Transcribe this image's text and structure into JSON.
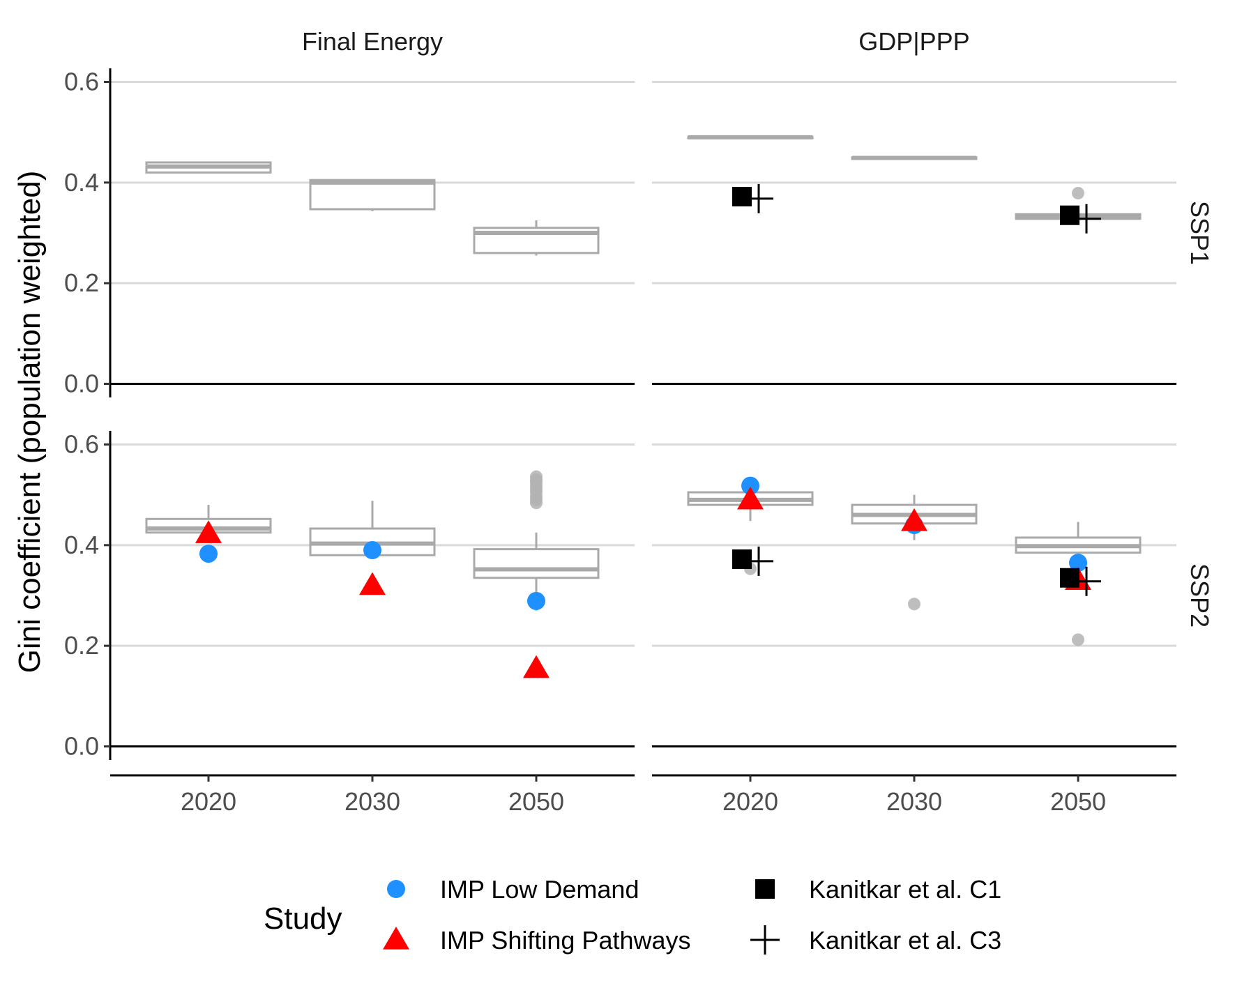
{
  "chart_data": {
    "type": "box",
    "ylabel": "Gini coefficient (population weighted)",
    "xlabel": "",
    "ylim": [
      0.0,
      0.6
    ],
    "yticks": [
      0.0,
      0.2,
      0.4,
      0.6
    ],
    "ytick_labels": [
      "0.0",
      "0.2",
      "0.4",
      "0.6"
    ],
    "categories": [
      "2020",
      "2030",
      "2050"
    ],
    "columns": [
      "Final Energy",
      "GDP|PPP"
    ],
    "rows": [
      "SSP1",
      "SSP2"
    ],
    "grid": "horizontal major",
    "legend": {
      "title": "Study",
      "position": "bottom",
      "entries": [
        {
          "label": "IMP Low Demand",
          "shape": "circle",
          "color": "#1e90ff"
        },
        {
          "label": "IMP Shifting Pathways",
          "shape": "triangle",
          "color": "#ff0000"
        },
        {
          "label": "Kanitkar et al. C1",
          "shape": "square",
          "color": "#000000"
        },
        {
          "label": "Kanitkar et al. C3",
          "shape": "cross",
          "color": "#000000"
        }
      ]
    },
    "colors": {
      "box": "#a9a9a9",
      "grid": "#d9d9d9",
      "outlier": "#b3b3b3"
    },
    "panels": [
      {
        "row": "SSP1",
        "column": "Final Energy",
        "boxes": [
          {
            "x": "2020",
            "lower_whisker": 0.42,
            "q1": 0.42,
            "median": 0.432,
            "q3": 0.44,
            "upper_whisker": 0.44,
            "outliers": []
          },
          {
            "x": "2030",
            "lower_whisker": 0.343,
            "q1": 0.347,
            "median": 0.4,
            "q3": 0.405,
            "upper_whisker": 0.405,
            "outliers": []
          },
          {
            "x": "2050",
            "lower_whisker": 0.255,
            "q1": 0.26,
            "median": 0.3,
            "q3": 0.31,
            "upper_whisker": 0.325,
            "outliers": []
          }
        ],
        "points": []
      },
      {
        "row": "SSP1",
        "column": "GDP|PPP",
        "boxes": [
          {
            "x": "2020",
            "lower_whisker": 0.488,
            "q1": 0.488,
            "median": 0.49,
            "q3": 0.491,
            "upper_whisker": 0.491,
            "outliers": []
          },
          {
            "x": "2030",
            "lower_whisker": 0.447,
            "q1": 0.447,
            "median": 0.449,
            "q3": 0.45,
            "upper_whisker": 0.453,
            "outliers": []
          },
          {
            "x": "2050",
            "lower_whisker": 0.327,
            "q1": 0.328,
            "median": 0.333,
            "q3": 0.337,
            "upper_whisker": 0.337,
            "outliers": [
              0.379
            ]
          }
        ],
        "points": [
          {
            "study": "Kanitkar et al. C1",
            "x": "2020",
            "y": 0.372
          },
          {
            "study": "Kanitkar et al. C3",
            "x": "2020",
            "y": 0.368
          },
          {
            "study": "Kanitkar et al. C1",
            "x": "2050",
            "y": 0.335
          },
          {
            "study": "Kanitkar et al. C3",
            "x": "2050",
            "y": 0.328
          }
        ]
      },
      {
        "row": "SSP2",
        "column": "Final Energy",
        "boxes": [
          {
            "x": "2020",
            "lower_whisker": 0.42,
            "q1": 0.425,
            "median": 0.433,
            "q3": 0.452,
            "upper_whisker": 0.48,
            "outliers": []
          },
          {
            "x": "2030",
            "lower_whisker": 0.38,
            "q1": 0.38,
            "median": 0.403,
            "q3": 0.433,
            "upper_whisker": 0.488,
            "outliers": []
          },
          {
            "x": "2050",
            "lower_whisker": 0.27,
            "q1": 0.335,
            "median": 0.352,
            "q3": 0.392,
            "upper_whisker": 0.425,
            "outliers": [
              0.484,
              0.49,
              0.497,
              0.505,
              0.512,
              0.518,
              0.525,
              0.53,
              0.536
            ]
          }
        ],
        "points": [
          {
            "study": "IMP Low Demand",
            "x": "2020",
            "y": 0.383
          },
          {
            "study": "IMP Shifting Pathways",
            "x": "2020",
            "y": 0.423
          },
          {
            "study": "IMP Low Demand",
            "x": "2030",
            "y": 0.39
          },
          {
            "study": "IMP Shifting Pathways",
            "x": "2030",
            "y": 0.32
          },
          {
            "study": "IMP Low Demand",
            "x": "2050",
            "y": 0.289
          },
          {
            "study": "IMP Shifting Pathways",
            "x": "2050",
            "y": 0.155
          }
        ]
      },
      {
        "row": "SSP2",
        "column": "GDP|PPP",
        "boxes": [
          {
            "x": "2020",
            "lower_whisker": 0.448,
            "q1": 0.48,
            "median": 0.49,
            "q3": 0.505,
            "upper_whisker": 0.505,
            "outliers": [
              0.353
            ]
          },
          {
            "x": "2030",
            "lower_whisker": 0.41,
            "q1": 0.443,
            "median": 0.46,
            "q3": 0.48,
            "upper_whisker": 0.5,
            "outliers": [
              0.283
            ]
          },
          {
            "x": "2050",
            "lower_whisker": 0.34,
            "q1": 0.385,
            "median": 0.398,
            "q3": 0.415,
            "upper_whisker": 0.446,
            "outliers": [
              0.212
            ]
          }
        ],
        "points": [
          {
            "study": "IMP Low Demand",
            "x": "2020",
            "y": 0.518
          },
          {
            "study": "IMP Shifting Pathways",
            "x": "2020",
            "y": 0.49
          },
          {
            "study": "Kanitkar et al. C1",
            "x": "2020",
            "y": 0.372
          },
          {
            "study": "Kanitkar et al. C3",
            "x": "2020",
            "y": 0.368
          },
          {
            "study": "IMP Low Demand",
            "x": "2030",
            "y": 0.44
          },
          {
            "study": "IMP Shifting Pathways",
            "x": "2030",
            "y": 0.447
          },
          {
            "study": "IMP Low Demand",
            "x": "2050",
            "y": 0.365
          },
          {
            "study": "IMP Shifting Pathways",
            "x": "2050",
            "y": 0.33
          },
          {
            "study": "Kanitkar et al. C1",
            "x": "2050",
            "y": 0.335
          },
          {
            "study": "Kanitkar et al. C3",
            "x": "2050",
            "y": 0.328
          }
        ]
      }
    ]
  }
}
